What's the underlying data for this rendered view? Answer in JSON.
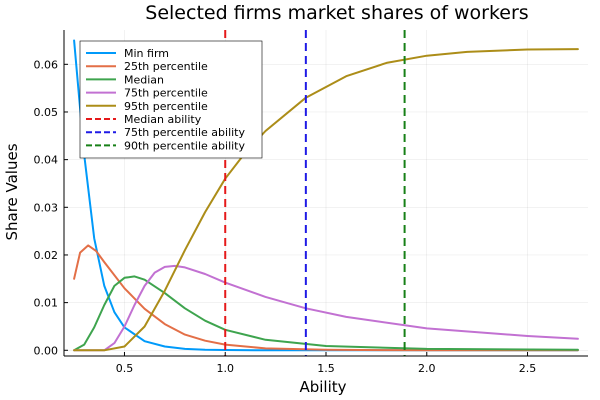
{
  "chart_data": {
    "type": "line",
    "title": "Selected firms market shares of workers",
    "xlabel": "Ability",
    "ylabel": "Share Values",
    "xlim": [
      0.2,
      2.8
    ],
    "ylim": [
      -0.0012,
      0.0672
    ],
    "xticks": [
      0.5,
      1.0,
      1.5,
      2.0,
      2.5
    ],
    "xtick_labels": [
      "0.5",
      "1.0",
      "1.5",
      "2.0",
      "2.5"
    ],
    "yticks": [
      0.0,
      0.01,
      0.02,
      0.03,
      0.04,
      0.05,
      0.06
    ],
    "ytick_labels": [
      "0.00",
      "0.01",
      "0.02",
      "0.03",
      "0.04",
      "0.05",
      "0.06"
    ],
    "grid": true,
    "legend_position": "top-left",
    "series": [
      {
        "name": "Min firm",
        "color": "#009AFA",
        "dash": false,
        "x": [
          0.25,
          0.3,
          0.35,
          0.4,
          0.45,
          0.5,
          0.6,
          0.7,
          0.8,
          0.9,
          1.0,
          1.2,
          1.5,
          2.0,
          2.75
        ],
        "y": [
          0.065,
          0.041,
          0.0235,
          0.0135,
          0.008,
          0.0048,
          0.0019,
          0.0008,
          0.0003,
          0.00012,
          5e-05,
          0.0,
          0.0,
          0.0,
          0.0
        ]
      },
      {
        "name": "25th percentile",
        "color": "#E36F47",
        "dash": false,
        "x": [
          0.25,
          0.28,
          0.32,
          0.36,
          0.4,
          0.5,
          0.6,
          0.7,
          0.8,
          0.9,
          1.0,
          1.2,
          1.5,
          2.0,
          2.75
        ],
        "y": [
          0.015,
          0.0205,
          0.022,
          0.0208,
          0.0185,
          0.013,
          0.0087,
          0.0055,
          0.0033,
          0.002,
          0.0012,
          0.0004,
          0.0001,
          0.0,
          0.0
        ]
      },
      {
        "name": "Median",
        "color": "#3EA44E",
        "dash": false,
        "x": [
          0.25,
          0.3,
          0.35,
          0.4,
          0.45,
          0.5,
          0.55,
          0.6,
          0.7,
          0.8,
          0.9,
          1.0,
          1.2,
          1.5,
          2.0,
          2.75
        ],
        "y": [
          0.0,
          0.0012,
          0.0048,
          0.0095,
          0.0135,
          0.0152,
          0.0155,
          0.0148,
          0.012,
          0.0088,
          0.0062,
          0.0043,
          0.0022,
          0.0009,
          0.0003,
          0.0001
        ]
      },
      {
        "name": "75th percentile",
        "color": "#C271D2",
        "dash": false,
        "x": [
          0.25,
          0.4,
          0.45,
          0.5,
          0.55,
          0.6,
          0.65,
          0.7,
          0.75,
          0.8,
          0.9,
          1.0,
          1.2,
          1.4,
          1.6,
          2.0,
          2.5,
          2.75
        ],
        "y": [
          0.0,
          0.0,
          0.0015,
          0.005,
          0.0095,
          0.0135,
          0.0163,
          0.0175,
          0.0177,
          0.0174,
          0.016,
          0.0142,
          0.0112,
          0.0088,
          0.007,
          0.0046,
          0.003,
          0.0024
        ]
      },
      {
        "name": "95th percentile",
        "color": "#AC8D18",
        "dash": false,
        "x": [
          0.25,
          0.4,
          0.5,
          0.6,
          0.7,
          0.8,
          0.9,
          1.0,
          1.1,
          1.2,
          1.4,
          1.6,
          1.8,
          2.0,
          2.2,
          2.5,
          2.75
        ],
        "y": [
          0.0,
          0.0,
          0.0008,
          0.005,
          0.0125,
          0.021,
          0.029,
          0.036,
          0.0415,
          0.046,
          0.053,
          0.0575,
          0.0603,
          0.0618,
          0.0626,
          0.0631,
          0.0632
        ]
      },
      {
        "name": "Median ability",
        "color": "#E5191A",
        "dash": true,
        "vline_x": 1.0
      },
      {
        "name": "75th percentile ability",
        "color": "#1F1AE5",
        "dash": true,
        "vline_x": 1.4
      },
      {
        "name": "90th percentile ability",
        "color": "#178017",
        "dash": true,
        "vline_x": 1.89
      }
    ]
  }
}
